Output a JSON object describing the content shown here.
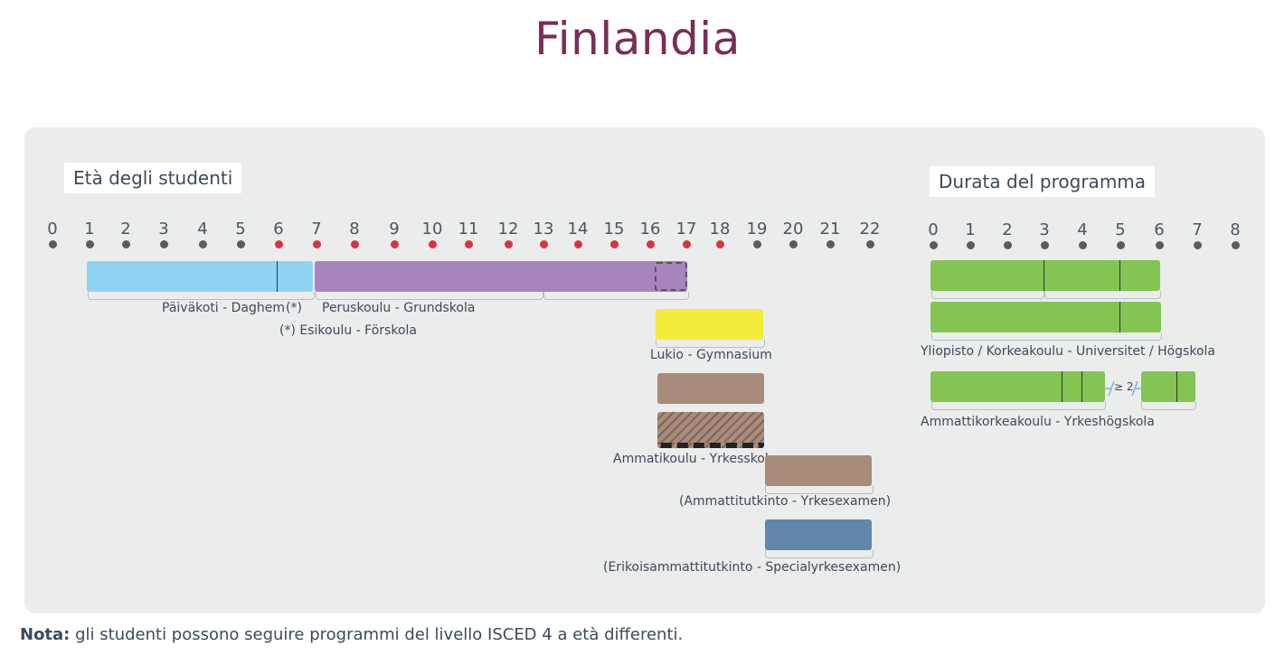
{
  "title": "Finlandia",
  "age_axis": {
    "header": "Età degli studenti",
    "ticks": [
      "0",
      "1",
      "2",
      "3",
      "4",
      "5",
      "6",
      "7",
      "8",
      "9",
      "10",
      "11",
      "12",
      "13",
      "14",
      "15",
      "16",
      "17",
      "18",
      "19",
      "20",
      "21",
      "22"
    ],
    "compulsory_ages": [
      "6",
      "7",
      "8",
      "9",
      "10",
      "11",
      "12",
      "13",
      "14",
      "15",
      "16",
      "17",
      "18"
    ]
  },
  "duration_axis": {
    "header": "Durata del programma",
    "ticks": [
      "0",
      "1",
      "2",
      "3",
      "4",
      "5",
      "6",
      "7",
      "8"
    ]
  },
  "programmes": {
    "paivakoti": "Päiväkoti - Daghem",
    "paivakoti_mark": "(*)",
    "esikoulu": "(*) Esikoulu - Förskola",
    "peruskoulu": "Peruskoulu - Grundskola",
    "lukio": "Lukio - Gymnasium",
    "ammatikoulu": "Ammatikoulu - Yrkesskola",
    "ammattitutkinto": "(Ammattitutkinto - Yrkesexamen)",
    "erikoisammattitutkinto": "(Erikoisammattitutkinto - Specialyrkesexamen)",
    "yliopisto": "Yliopisto / Korkeakoulu - Universitet / Högskola",
    "amk": "Ammattikorkeakoulu - Yrkeshögskola",
    "amk_gap": "≥ 2"
  },
  "colors": {
    "title": "#7a2d57",
    "ecec": "#8fd3f2",
    "primary_lower_secondary": "#a884be",
    "general_upper_secondary": "#f2ec3a",
    "vocational": "#a88b7b",
    "post_secondary": "#6186a9",
    "tertiary": "#83c452",
    "compulsory_dot": "#d9343b",
    "tick_dot": "#5b5b5b"
  },
  "note": {
    "label": "Nota:",
    "text": " gli studenti possono seguire programmi del livello ISCED 4 a età differenti."
  }
}
